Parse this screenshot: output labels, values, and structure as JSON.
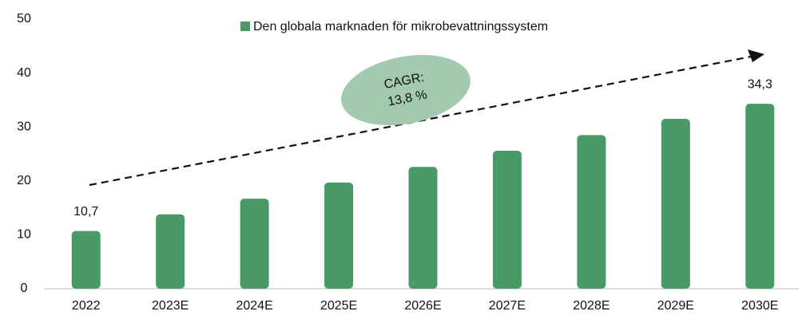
{
  "chart_data": {
    "type": "bar",
    "legend": "Den globala marknaden för mikrobevattningssystem",
    "categories": [
      "2022",
      "2023E",
      "2024E",
      "2025E",
      "2026E",
      "2027E",
      "2028E",
      "2029E",
      "2030E"
    ],
    "values": [
      10.7,
      13.8,
      16.7,
      19.7,
      22.6,
      25.6,
      28.5,
      31.5,
      34.3
    ],
    "value_labels": [
      "10,7",
      null,
      null,
      null,
      null,
      null,
      null,
      null,
      "34,3"
    ],
    "color": "#4a9a68",
    "annotation": [
      "CAGR:",
      "13,8 %"
    ],
    "ylim": [
      0,
      50
    ],
    "yticks": [
      0,
      10,
      20,
      30,
      40,
      50
    ],
    "grid": false
  }
}
